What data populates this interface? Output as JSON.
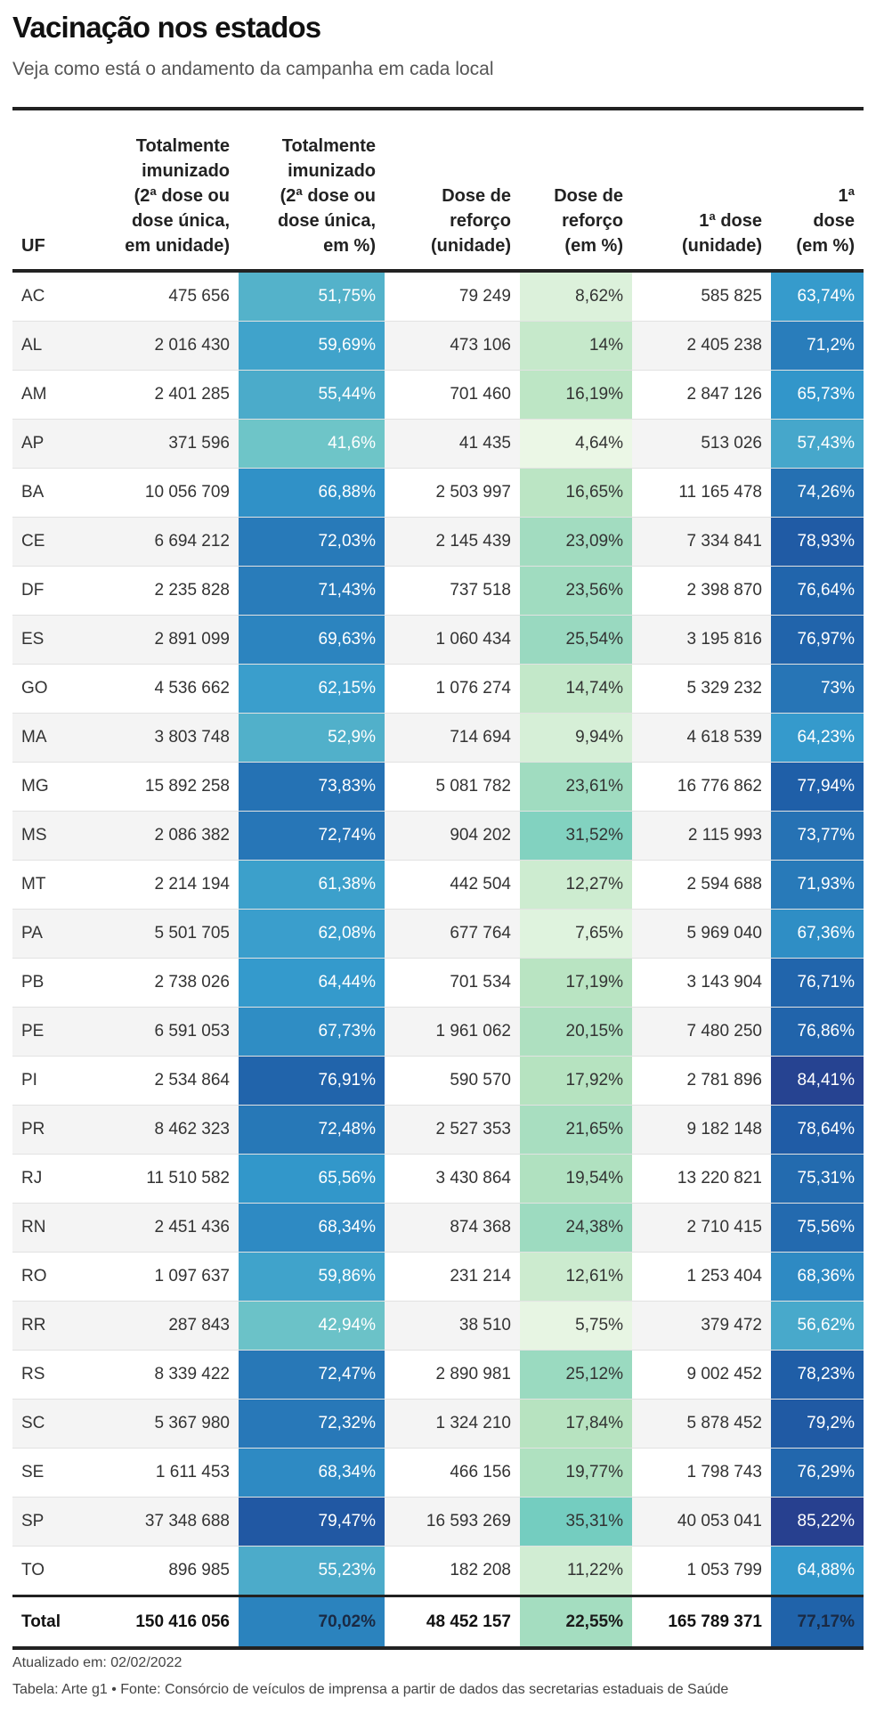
{
  "title": "Vacinação nos estados",
  "subtitle": "Veja como está o andamento da campanha em cada local",
  "columns": [
    "UF",
    "Totalmente imunizado (2ª dose ou dose única, em unidade)",
    "Totalmente imunizado (2ª dose ou dose única, em %)",
    "Dose de reforço (unidade)",
    "Dose de reforço (em %)",
    "1ª dose (unidade)",
    "1ª dose (em %)"
  ],
  "column_lines": [
    [
      "UF"
    ],
    [
      "Totalmente",
      "imunizado",
      "(2ª dose ou",
      "dose única,",
      "em unidade)"
    ],
    [
      "Totalmente",
      "imunizado",
      "(2ª dose ou",
      "dose única,",
      "em %)"
    ],
    [
      "Dose de",
      "reforço",
      "(unidade)"
    ],
    [
      "Dose de",
      "reforço",
      "(em %)"
    ],
    [
      "1ª dose",
      "(unidade)"
    ],
    [
      "1ª",
      "dose",
      "(em %)"
    ]
  ],
  "rows": [
    [
      "AC",
      "475 656",
      "51,75%",
      "79 249",
      "8,62%",
      "585 825",
      "63,74%"
    ],
    [
      "AL",
      "2 016 430",
      "59,69%",
      "473 106",
      "14%",
      "2 405 238",
      "71,2%"
    ],
    [
      "AM",
      "2 401 285",
      "55,44%",
      "701 460",
      "16,19%",
      "2 847 126",
      "65,73%"
    ],
    [
      "AP",
      "371 596",
      "41,6%",
      "41 435",
      "4,64%",
      "513 026",
      "57,43%"
    ],
    [
      "BA",
      "10 056 709",
      "66,88%",
      "2 503 997",
      "16,65%",
      "11 165 478",
      "74,26%"
    ],
    [
      "CE",
      "6 694 212",
      "72,03%",
      "2 145 439",
      "23,09%",
      "7 334 841",
      "78,93%"
    ],
    [
      "DF",
      "2 235 828",
      "71,43%",
      "737 518",
      "23,56%",
      "2 398 870",
      "76,64%"
    ],
    [
      "ES",
      "2 891 099",
      "69,63%",
      "1 060 434",
      "25,54%",
      "3 195 816",
      "76,97%"
    ],
    [
      "GO",
      "4 536 662",
      "62,15%",
      "1 076 274",
      "14,74%",
      "5 329 232",
      "73%"
    ],
    [
      "MA",
      "3 803 748",
      "52,9%",
      "714 694",
      "9,94%",
      "4 618 539",
      "64,23%"
    ],
    [
      "MG",
      "15 892 258",
      "73,83%",
      "5 081 782",
      "23,61%",
      "16 776 862",
      "77,94%"
    ],
    [
      "MS",
      "2 086 382",
      "72,74%",
      "904 202",
      "31,52%",
      "2 115 993",
      "73,77%"
    ],
    [
      "MT",
      "2 214 194",
      "61,38%",
      "442 504",
      "12,27%",
      "2 594 688",
      "71,93%"
    ],
    [
      "PA",
      "5 501 705",
      "62,08%",
      "677 764",
      "7,65%",
      "5 969 040",
      "67,36%"
    ],
    [
      "PB",
      "2 738 026",
      "64,44%",
      "701 534",
      "17,19%",
      "3 143 904",
      "76,71%"
    ],
    [
      "PE",
      "6 591 053",
      "67,73%",
      "1 961 062",
      "20,15%",
      "7 480 250",
      "76,86%"
    ],
    [
      "PI",
      "2 534 864",
      "76,91%",
      "590 570",
      "17,92%",
      "2 781 896",
      "84,41%"
    ],
    [
      "PR",
      "8 462 323",
      "72,48%",
      "2 527 353",
      "21,65%",
      "9 182 148",
      "78,64%"
    ],
    [
      "RJ",
      "11 510 582",
      "65,56%",
      "3 430 864",
      "19,54%",
      "13 220 821",
      "75,31%"
    ],
    [
      "RN",
      "2 451 436",
      "68,34%",
      "874 368",
      "24,38%",
      "2 710 415",
      "75,56%"
    ],
    [
      "RO",
      "1 097 637",
      "59,86%",
      "231 214",
      "12,61%",
      "1 253 404",
      "68,36%"
    ],
    [
      "RR",
      "287 843",
      "42,94%",
      "38 510",
      "5,75%",
      "379 472",
      "56,62%"
    ],
    [
      "RS",
      "8 339 422",
      "72,47%",
      "2 890 981",
      "25,12%",
      "9 002 452",
      "78,23%"
    ],
    [
      "SC",
      "5 367 980",
      "72,32%",
      "1 324 210",
      "17,84%",
      "5 878 452",
      "79,2%"
    ],
    [
      "SE",
      "1 611 453",
      "68,34%",
      "466 156",
      "19,77%",
      "1 798 743",
      "76,29%"
    ],
    [
      "SP",
      "37 348 688",
      "79,47%",
      "16 593 269",
      "35,31%",
      "40 053 041",
      "85,22%"
    ],
    [
      "TO",
      "896 985",
      "55,23%",
      "182 208",
      "11,22%",
      "1 053 799",
      "64,88%"
    ]
  ],
  "total": [
    "Total",
    "150 416 056",
    "70,02%",
    "48 452 157",
    "22,55%",
    "165 789 371",
    "77,17%"
  ],
  "heat_colors": {
    "blue_low": "#72c8c8",
    "blue_mid": "#3399cc",
    "blue_high": "#1f5fa8",
    "blue_top": "#27408f",
    "green_low": "#eef8e8",
    "green_mid": "#b6e3c0",
    "green_high": "#74cdc0",
    "text_light": "#ffffff",
    "text_dark": "#333333"
  },
  "footer": {
    "updated": "Atualizado em: 02/02/2022",
    "source": "Tabela: Arte g1 • Fonte: Consórcio de veículos de imprensa a partir de dados das secretarias estaduais de Saúde"
  }
}
